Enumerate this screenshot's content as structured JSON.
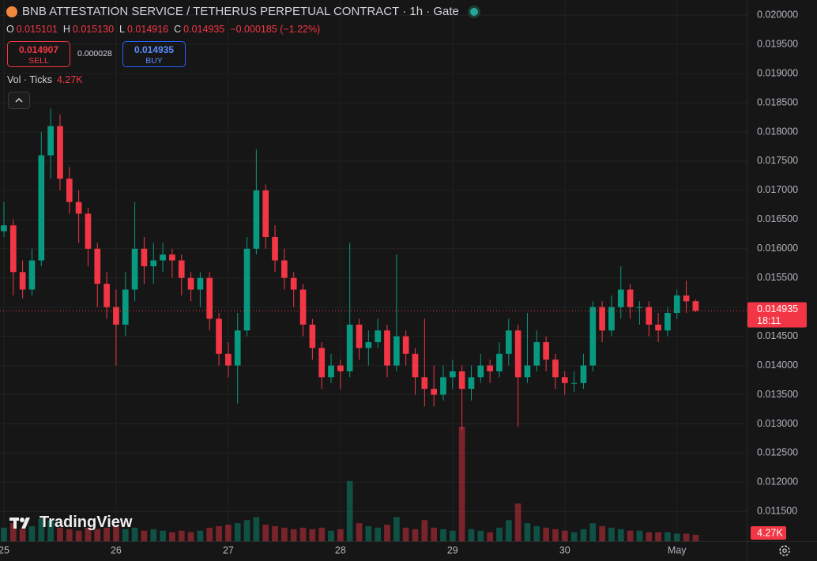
{
  "header": {
    "title": "BNB ATTESTATION SERVICE / TETHERUS PERPETUAL CONTRACT · 1h · Gate",
    "ohlc": [
      {
        "key": "O",
        "value": "0.015101"
      },
      {
        "key": "H",
        "value": "0.015130"
      },
      {
        "key": "L",
        "value": "0.014916"
      },
      {
        "key": "C",
        "value": "0.014935"
      }
    ],
    "change": "−0.000185 (−1.22%)",
    "sell_price": "0.014907",
    "sell_label": "SELL",
    "spread": "0.000028",
    "buy_price": "0.014935",
    "buy_label": "BUY",
    "volume_title": "Vol · Ticks",
    "volume_value": "4.27K"
  },
  "chart_data": {
    "type": "candlestick",
    "candles": {
      "open": [
        0.0163,
        0.0164,
        0.0156,
        0.0153,
        0.0158,
        0.0176,
        0.0181,
        0.0172,
        0.0168,
        0.0166,
        0.016,
        0.0154,
        0.015,
        0.0147,
        0.0153,
        0.016,
        0.0157,
        0.0158,
        0.0159,
        0.0158,
        0.0155,
        0.0153,
        0.0155,
        0.0148,
        0.0142,
        0.014,
        0.0146,
        0.016,
        0.017,
        0.0162,
        0.0158,
        0.0155,
        0.0153,
        0.0147,
        0.0143,
        0.0138,
        0.014,
        0.0139,
        0.0147,
        0.0143,
        0.0144,
        0.0146,
        0.014,
        0.0145,
        0.0142,
        0.0138,
        0.0136,
        0.0135,
        0.0138,
        0.0139,
        0.0136,
        0.0138,
        0.014,
        0.0139,
        0.0142,
        0.0146,
        0.0138,
        0.014,
        0.0144,
        0.0141,
        0.0138,
        0.0137,
        0.0137,
        0.014,
        0.015,
        0.0146,
        0.015,
        0.0153,
        0.015,
        0.015,
        0.0147,
        0.0146,
        0.0149,
        0.0152,
        0.015101
      ],
      "high": [
        0.0168,
        0.0165,
        0.0158,
        0.016,
        0.018,
        0.0184,
        0.0183,
        0.0174,
        0.017,
        0.0167,
        0.0161,
        0.0156,
        0.0153,
        0.0156,
        0.0168,
        0.0162,
        0.0161,
        0.0161,
        0.016,
        0.0159,
        0.0156,
        0.0156,
        0.0156,
        0.0149,
        0.0144,
        0.0149,
        0.0162,
        0.0177,
        0.0171,
        0.0164,
        0.016,
        0.0156,
        0.0154,
        0.0148,
        0.0144,
        0.0142,
        0.0141,
        0.0161,
        0.0148,
        0.0146,
        0.0148,
        0.0147,
        0.0159,
        0.0146,
        0.0143,
        0.0148,
        0.014,
        0.014,
        0.0141,
        0.014,
        0.014,
        0.0142,
        0.0141,
        0.0144,
        0.0148,
        0.0147,
        0.0149,
        0.0146,
        0.0145,
        0.0142,
        0.0139,
        0.0139,
        0.0142,
        0.0151,
        0.0151,
        0.0152,
        0.0157,
        0.0154,
        0.0151,
        0.0151,
        0.0149,
        0.015,
        0.0153,
        0.01545,
        0.01513
      ],
      "low": [
        0.0162,
        0.0152,
        0.01515,
        0.0152,
        0.0157,
        0.0172,
        0.017,
        0.0166,
        0.0161,
        0.0157,
        0.015,
        0.0148,
        0.014,
        0.0145,
        0.0151,
        0.0154,
        0.0154,
        0.0156,
        0.0155,
        0.0152,
        0.0151,
        0.015,
        0.0146,
        0.014,
        0.0138,
        0.01335,
        0.0145,
        0.0159,
        0.016,
        0.0156,
        0.0153,
        0.015,
        0.0145,
        0.0141,
        0.0136,
        0.0137,
        0.0136,
        0.0138,
        0.0141,
        0.014,
        0.0143,
        0.0138,
        0.0139,
        0.014,
        0.0135,
        0.0133,
        0.0133,
        0.0134,
        0.0136,
        0.0129,
        0.0134,
        0.0137,
        0.0137,
        0.0138,
        0.014,
        0.01295,
        0.0137,
        0.0139,
        0.0139,
        0.0136,
        0.0135,
        0.01355,
        0.0136,
        0.0139,
        0.0144,
        0.0145,
        0.0148,
        0.0148,
        0.0147,
        0.0145,
        0.0144,
        0.0145,
        0.0148,
        0.0149,
        0.014916
      ],
      "close": [
        0.0164,
        0.0156,
        0.0153,
        0.0158,
        0.0176,
        0.0181,
        0.0172,
        0.0168,
        0.0166,
        0.016,
        0.0154,
        0.015,
        0.0147,
        0.0153,
        0.016,
        0.0157,
        0.0158,
        0.0159,
        0.0158,
        0.0155,
        0.0153,
        0.0155,
        0.0148,
        0.0142,
        0.014,
        0.0146,
        0.016,
        0.017,
        0.0162,
        0.0158,
        0.0155,
        0.0153,
        0.0147,
        0.0143,
        0.0138,
        0.014,
        0.0139,
        0.0147,
        0.0143,
        0.0144,
        0.0146,
        0.014,
        0.0145,
        0.0142,
        0.0138,
        0.0136,
        0.0135,
        0.0138,
        0.0139,
        0.0136,
        0.0138,
        0.014,
        0.0139,
        0.0142,
        0.0146,
        0.0138,
        0.014,
        0.0144,
        0.0141,
        0.0138,
        0.0137,
        0.0137,
        0.014,
        0.015,
        0.0146,
        0.015,
        0.0153,
        0.015,
        0.015,
        0.0147,
        0.0146,
        0.0149,
        0.0152,
        0.0151,
        0.014935
      ]
    },
    "volume": [
      9000,
      12000,
      8000,
      10000,
      15000,
      14000,
      9000,
      8000,
      7000,
      9000,
      8000,
      9000,
      10000,
      8000,
      9000,
      7000,
      8000,
      7000,
      6000,
      7000,
      6000,
      7000,
      9000,
      10000,
      11000,
      12000,
      14000,
      16000,
      11000,
      10000,
      9000,
      8000,
      9000,
      8000,
      9000,
      7000,
      8000,
      40000,
      12000,
      10000,
      9000,
      11000,
      16000,
      9000,
      8000,
      14000,
      9000,
      8000,
      7000,
      76000,
      8000,
      7000,
      6000,
      9000,
      14000,
      25000,
      12000,
      10000,
      9000,
      8000,
      7000,
      6000,
      8000,
      12000,
      10000,
      9000,
      8000,
      7000,
      7000,
      6000,
      6000,
      6000,
      5000,
      5000,
      4270
    ],
    "up_color": "#089981",
    "down_color": "#f23645",
    "ylim": [
      0.01099,
      0.02026
    ],
    "yticks": [
      {
        "value": 0.0115,
        "label": "0.011500"
      },
      {
        "value": 0.012,
        "label": "0.012000"
      },
      {
        "value": 0.0125,
        "label": "0.012500"
      },
      {
        "value": 0.013,
        "label": "0.013000"
      },
      {
        "value": 0.0135,
        "label": "0.013500"
      },
      {
        "value": 0.014,
        "label": "0.014000"
      },
      {
        "value": 0.0145,
        "label": "0.014500"
      },
      {
        "value": 0.015,
        "label": "0.015000"
      },
      {
        "value": 0.0155,
        "label": "0.015500"
      },
      {
        "value": 0.016,
        "label": "0.016000"
      },
      {
        "value": 0.0165,
        "label": "0.016500"
      },
      {
        "value": 0.017,
        "label": "0.017000"
      },
      {
        "value": 0.0175,
        "label": "0.017500"
      },
      {
        "value": 0.018,
        "label": "0.018000"
      },
      {
        "value": 0.0185,
        "label": "0.018500"
      },
      {
        "value": 0.019,
        "label": "0.019000"
      },
      {
        "value": 0.0195,
        "label": "0.019500"
      },
      {
        "value": 0.02,
        "label": "0.020000"
      }
    ],
    "xlim": [
      -0.42,
      79.46
    ],
    "xticks": [
      {
        "value": 0,
        "label": "25"
      },
      {
        "value": 12,
        "label": "26"
      },
      {
        "value": 24,
        "label": "27"
      },
      {
        "value": 36,
        "label": "28"
      },
      {
        "value": 48,
        "label": "29"
      },
      {
        "value": 60,
        "label": "30"
      },
      {
        "value": 72,
        "label": "May"
      }
    ],
    "grid": true,
    "last_price_label": "0.014935",
    "countdown": "18:11",
    "volume_label": "4.27K"
  },
  "branding": "TradingView"
}
